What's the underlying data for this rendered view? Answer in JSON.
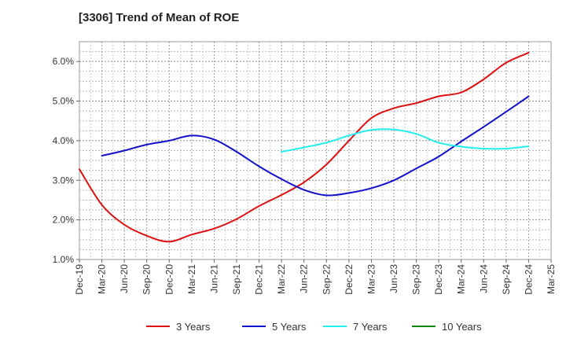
{
  "title": "[3306]  Trend of Mean of ROE",
  "chart_data": {
    "type": "line",
    "title": "[3306]  Trend of Mean of ROE",
    "xlabel": "",
    "ylabel": "",
    "ylim": [
      1.0,
      6.5
    ],
    "yticks": [
      1.0,
      2.0,
      3.0,
      4.0,
      5.0,
      6.0
    ],
    "ytick_labels": [
      "1.0%",
      "2.0%",
      "3.0%",
      "4.0%",
      "5.0%",
      "6.0%"
    ],
    "x_categories": [
      "Dec-19",
      "Mar-20",
      "Jun-20",
      "Sep-20",
      "Dec-20",
      "Mar-21",
      "Jun-21",
      "Sep-21",
      "Dec-21",
      "Mar-22",
      "Jun-22",
      "Sep-22",
      "Dec-22",
      "Mar-23",
      "Jun-23",
      "Sep-23",
      "Dec-23",
      "Mar-24",
      "Jun-24",
      "Sep-24",
      "Dec-24",
      "Mar-25"
    ],
    "grid": true,
    "legend_position": "bottom",
    "series": [
      {
        "name": "3 Years",
        "color": "#dd1111",
        "values": [
          3.28,
          2.38,
          1.88,
          1.6,
          1.45,
          1.63,
          1.78,
          2.02,
          2.35,
          2.63,
          2.95,
          3.4,
          4.0,
          4.57,
          4.82,
          4.95,
          5.12,
          5.22,
          5.55,
          5.97,
          6.22,
          null
        ]
      },
      {
        "name": "5 Years",
        "color": "#1111cc",
        "values": [
          null,
          3.62,
          3.75,
          3.9,
          4.0,
          4.13,
          4.03,
          3.72,
          3.35,
          3.03,
          2.76,
          2.62,
          2.68,
          2.8,
          3.0,
          3.3,
          3.6,
          3.98,
          4.35,
          4.73,
          5.12,
          null
        ]
      },
      {
        "name": "7 Years",
        "color": "#22eeee",
        "values": [
          null,
          null,
          null,
          null,
          null,
          null,
          null,
          null,
          null,
          3.72,
          3.83,
          3.95,
          4.13,
          4.27,
          4.28,
          4.17,
          3.95,
          3.85,
          3.8,
          3.8,
          3.86,
          null
        ]
      },
      {
        "name": "10 Years",
        "color": "#118811",
        "values": [
          null,
          null,
          null,
          null,
          null,
          null,
          null,
          null,
          null,
          null,
          null,
          null,
          null,
          null,
          null,
          null,
          null,
          null,
          null,
          null,
          null,
          null
        ]
      }
    ]
  }
}
